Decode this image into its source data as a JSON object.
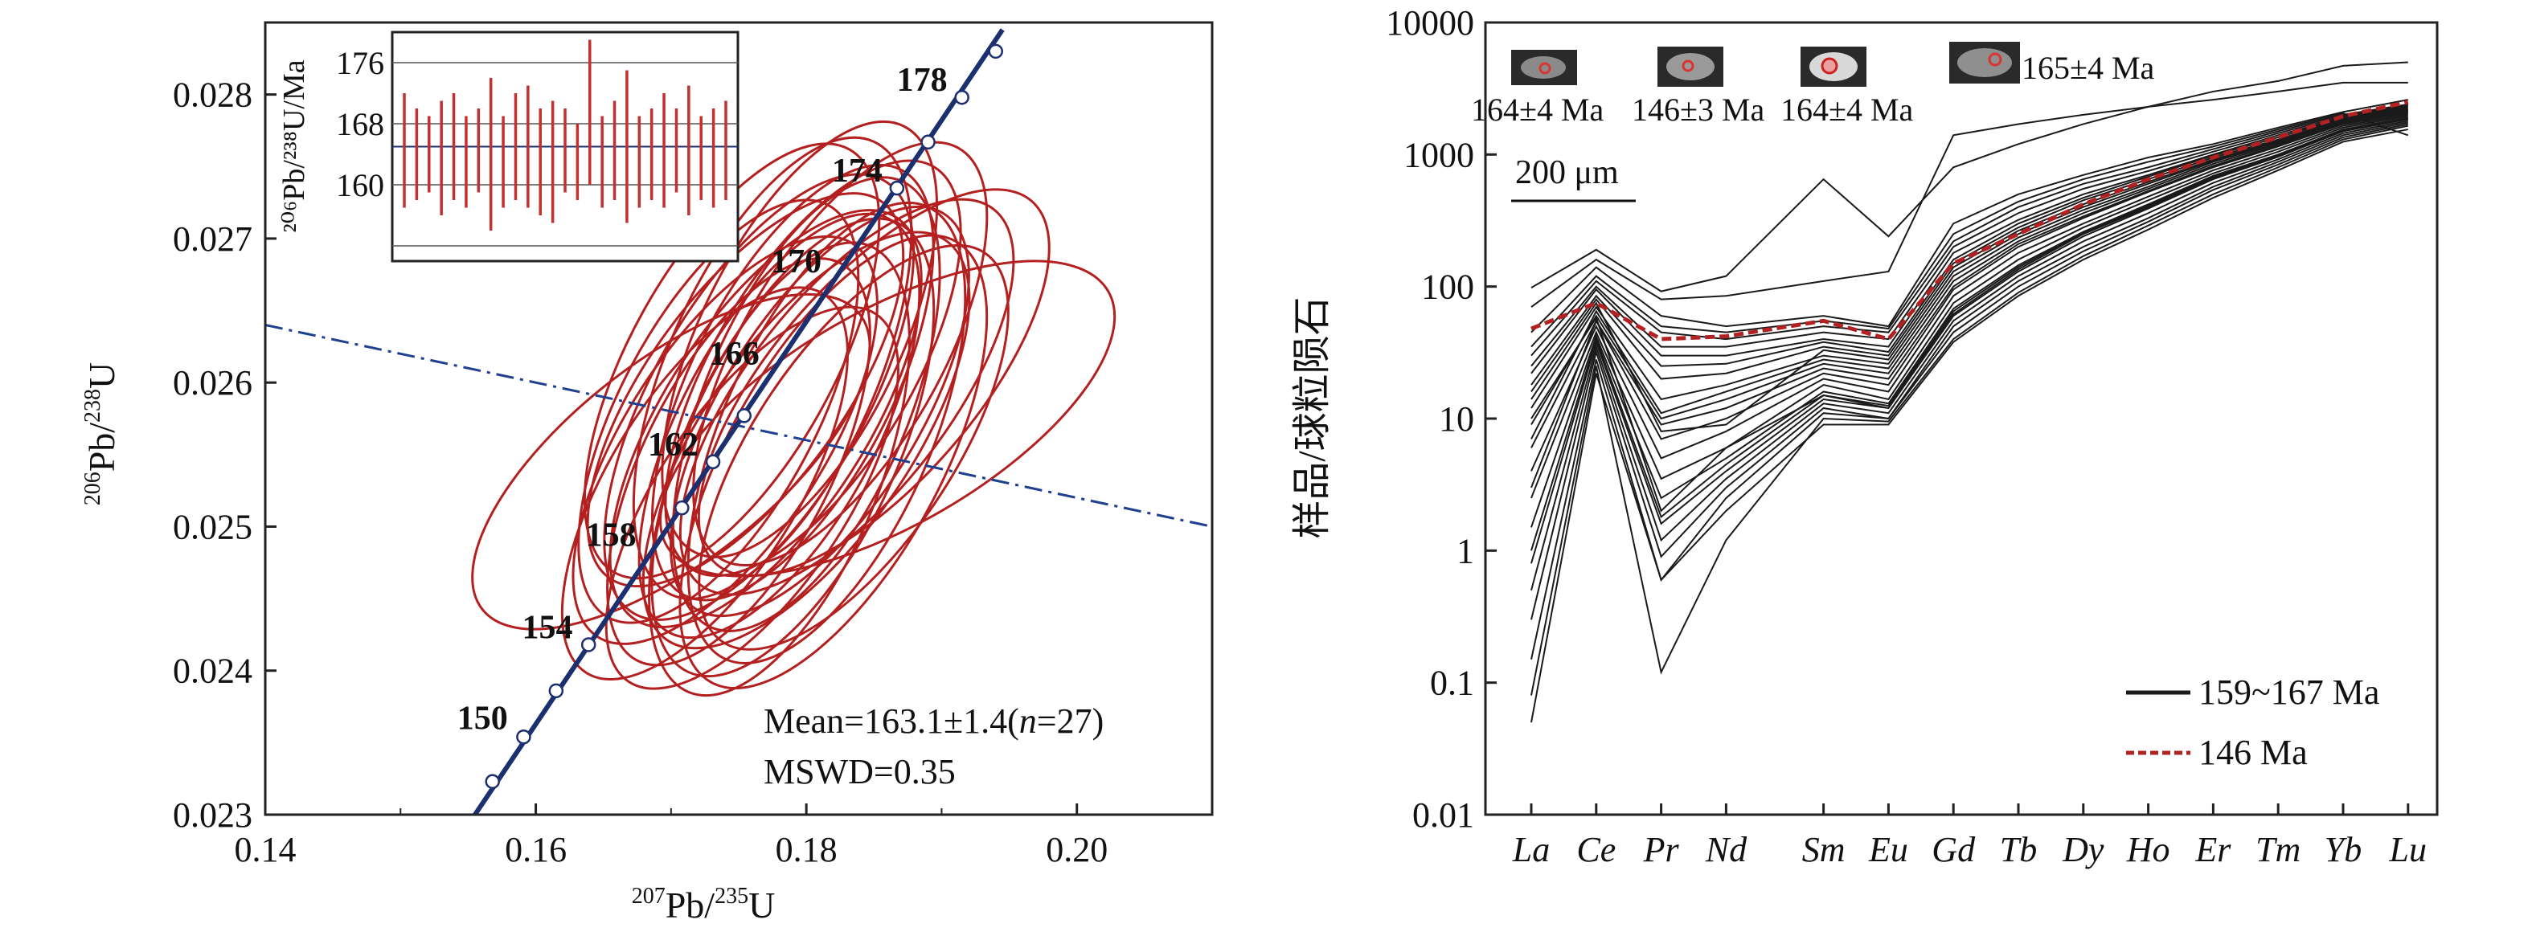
{
  "chart_data": [
    {
      "type": "scatter",
      "subtype": "concordia",
      "xlabel_mass": "207",
      "xlabel_rest": "Pb/",
      "xlabel_mass2": "235",
      "xlabel_tail": "U",
      "ylabel_mass": "206",
      "ylabel_rest": "Pb/",
      "ylabel_mass2": "238",
      "ylabel_tail": "U",
      "xlim": [
        0.14,
        0.21
      ],
      "ylim": [
        0.023,
        0.0285
      ],
      "xticks": [
        {
          "v": 0.14,
          "label": "0.14"
        },
        {
          "v": 0.16,
          "label": "0.16"
        },
        {
          "v": 0.18,
          "label": "0.18"
        },
        {
          "v": 0.2,
          "label": "0.20"
        }
      ],
      "yticks": [
        {
          "v": 0.023,
          "label": "0.023"
        },
        {
          "v": 0.024,
          "label": "0.024"
        },
        {
          "v": 0.025,
          "label": "0.025"
        },
        {
          "v": 0.026,
          "label": "0.026"
        },
        {
          "v": 0.027,
          "label": "0.027"
        },
        {
          "v": 0.028,
          "label": "0.028"
        }
      ],
      "concordia": {
        "points": [
          {
            "x": 0.1555,
            "y": 0.023
          },
          {
            "x": 0.1945,
            "y": 0.02845
          }
        ],
        "age_labels": [
          {
            "age": "150",
            "x": 0.159,
            "y": 0.02355
          },
          {
            "age": "154",
            "x": 0.1638,
            "y": 0.02418
          },
          {
            "age": "158",
            "x": 0.1685,
            "y": 0.02482
          },
          {
            "age": "162",
            "x": 0.1731,
            "y": 0.02545
          },
          {
            "age": "166",
            "x": 0.1776,
            "y": 0.02608
          },
          {
            "age": "170",
            "x": 0.1822,
            "y": 0.02672
          },
          {
            "age": "174",
            "x": 0.1867,
            "y": 0.02735
          },
          {
            "age": "178",
            "x": 0.1915,
            "y": 0.02798
          }
        ],
        "markers": [
          {
            "x": 0.1568,
            "y": 0.02323
          },
          {
            "x": 0.1591,
            "y": 0.02354
          },
          {
            "x": 0.1615,
            "y": 0.02386
          },
          {
            "x": 0.1639,
            "y": 0.02418
          },
          {
            "x": 0.1708,
            "y": 0.02513
          },
          {
            "x": 0.1731,
            "y": 0.02545
          },
          {
            "x": 0.1754,
            "y": 0.02577
          },
          {
            "x": 0.1867,
            "y": 0.02735
          },
          {
            "x": 0.189,
            "y": 0.02767
          },
          {
            "x": 0.1915,
            "y": 0.02798
          },
          {
            "x": 0.194,
            "y": 0.0283
          }
        ]
      },
      "reference_line": [
        {
          "x": 0.14,
          "y": 0.0264
        },
        {
          "x": 0.21,
          "y": 0.025
        }
      ],
      "ellipses": [
        {
          "cx": 0.178,
          "cy": 0.0257,
          "rx": 0.0112,
          "ry": 0.00135,
          "angle": 62
        },
        {
          "cx": 0.18,
          "cy": 0.0256,
          "rx": 0.0135,
          "ry": 0.00125,
          "angle": 55
        },
        {
          "cx": 0.1765,
          "cy": 0.0259,
          "rx": 0.0125,
          "ry": 0.0014,
          "angle": 60
        },
        {
          "cx": 0.179,
          "cy": 0.02555,
          "rx": 0.0108,
          "ry": 0.0015,
          "angle": 65
        },
        {
          "cx": 0.181,
          "cy": 0.0258,
          "rx": 0.012,
          "ry": 0.00128,
          "angle": 58
        },
        {
          "cx": 0.175,
          "cy": 0.02545,
          "rx": 0.0102,
          "ry": 0.00132,
          "angle": 63
        },
        {
          "cx": 0.183,
          "cy": 0.0259,
          "rx": 0.0142,
          "ry": 0.00112,
          "angle": 52
        },
        {
          "cx": 0.1775,
          "cy": 0.0261,
          "rx": 0.0116,
          "ry": 0.00145,
          "angle": 66
        },
        {
          "cx": 0.174,
          "cy": 0.0256,
          "rx": 0.0128,
          "ry": 0.00122,
          "angle": 57
        },
        {
          "cx": 0.182,
          "cy": 0.02545,
          "rx": 0.013,
          "ry": 0.00138,
          "angle": 61
        },
        {
          "cx": 0.1795,
          "cy": 0.0263,
          "rx": 0.0106,
          "ry": 0.00142,
          "angle": 64
        },
        {
          "cx": 0.176,
          "cy": 0.0252,
          "rx": 0.0118,
          "ry": 0.00118,
          "angle": 56
        },
        {
          "cx": 0.185,
          "cy": 0.026,
          "rx": 0.015,
          "ry": 0.00105,
          "angle": 49
        },
        {
          "cx": 0.178,
          "cy": 0.0254,
          "rx": 0.0098,
          "ry": 0.0015,
          "angle": 68
        },
        {
          "cx": 0.1805,
          "cy": 0.0261,
          "rx": 0.0124,
          "ry": 0.00126,
          "angle": 59
        },
        {
          "cx": 0.1735,
          "cy": 0.0258,
          "rx": 0.011,
          "ry": 0.00136,
          "angle": 62
        },
        {
          "cx": 0.1825,
          "cy": 0.0262,
          "rx": 0.0121,
          "ry": 0.00131,
          "angle": 60
        },
        {
          "cx": 0.1755,
          "cy": 0.02595,
          "rx": 0.0132,
          "ry": 0.00116,
          "angle": 54
        },
        {
          "cx": 0.1815,
          "cy": 0.02565,
          "rx": 0.0114,
          "ry": 0.00146,
          "angle": 66
        },
        {
          "cx": 0.177,
          "cy": 0.02575,
          "rx": 0.0136,
          "ry": 0.0012,
          "angle": 57
        },
        {
          "cx": 0.186,
          "cy": 0.02575,
          "rx": 0.016,
          "ry": 0.0011,
          "angle": 30
        },
        {
          "cx": 0.1725,
          "cy": 0.0253,
          "rx": 0.0108,
          "ry": 0.00128,
          "angle": 58
        },
        {
          "cx": 0.179,
          "cy": 0.026,
          "rx": 0.0119,
          "ry": 0.00134,
          "angle": 63
        },
        {
          "cx": 0.1745,
          "cy": 0.02615,
          "rx": 0.0115,
          "ry": 0.0014,
          "angle": 61
        },
        {
          "cx": 0.1835,
          "cy": 0.02555,
          "rx": 0.0126,
          "ry": 0.00124,
          "angle": 56
        },
        {
          "cx": 0.18,
          "cy": 0.02585,
          "rx": 0.0104,
          "ry": 0.00148,
          "angle": 67
        },
        {
          "cx": 0.17,
          "cy": 0.02545,
          "rx": 0.0145,
          "ry": 0.0011,
          "angle": 38
        }
      ],
      "annotation_mean": "Mean=163.1±1.4(",
      "annotation_n": "n",
      "annotation_n_tail": "=27)",
      "annotation_mswd": "MSWD=0.35",
      "inset": {
        "ylabel": "²⁰⁶Pb/²³⁸U/Ma",
        "ylim": [
          150,
          180
        ],
        "yticks": [
          {
            "v": 160,
            "label": "160"
          },
          {
            "v": 168,
            "label": "168"
          },
          {
            "v": 176,
            "label": "176"
          }
        ],
        "bars": [
          [
            157,
            172
          ],
          [
            158,
            170
          ],
          [
            159,
            169
          ],
          [
            156,
            171
          ],
          [
            158,
            172
          ],
          [
            157,
            169
          ],
          [
            159,
            170
          ],
          [
            154,
            174
          ],
          [
            157,
            169
          ],
          [
            158,
            172
          ],
          [
            157,
            173
          ],
          [
            156,
            170
          ],
          [
            155,
            171
          ],
          [
            159,
            170
          ],
          [
            158,
            168
          ],
          [
            160,
            179
          ],
          [
            157,
            169
          ],
          [
            158,
            171
          ],
          [
            155,
            175
          ],
          [
            157,
            169
          ],
          [
            158,
            170
          ],
          [
            157,
            172
          ],
          [
            159,
            170
          ],
          [
            156,
            173
          ],
          [
            158,
            169
          ],
          [
            157,
            170
          ],
          [
            158,
            171
          ]
        ]
      }
    },
    {
      "type": "line",
      "subtype": "chondrite-normalized REE pattern",
      "yscale": "log",
      "ylabel": "样品/球粒陨石",
      "ylim": [
        0.01,
        10000
      ],
      "yticks": [
        {
          "v": 0.01,
          "label": "0.01"
        },
        {
          "v": 0.1,
          "label": "0.1"
        },
        {
          "v": 1,
          "label": "1"
        },
        {
          "v": 10,
          "label": "10"
        },
        {
          "v": 100,
          "label": "100"
        },
        {
          "v": 1000,
          "label": "1000"
        },
        {
          "v": 10000,
          "label": "10000"
        }
      ],
      "categories": [
        "La",
        "Ce",
        "Pr",
        "Nd",
        "Sm",
        "Eu",
        "Gd",
        "Tb",
        "Dy",
        "Ho",
        "Er",
        "Tm",
        "Yb",
        "Lu"
      ],
      "category_positions": [
        0,
        1,
        2,
        3,
        4.5,
        5.5,
        6.5,
        7.5,
        8.5,
        9.5,
        10.5,
        11.5,
        12.5,
        13.5
      ],
      "series": [
        {
          "name": "159~167 Ma",
          "color": "#1a1a1a",
          "style": "solid"
        },
        {
          "name": "146 Ma",
          "color": "#b22222",
          "style": "dashed"
        }
      ],
      "group_lines": [
        [
          98,
          190,
          92,
          120,
          650,
          240,
          800,
          1200,
          1700,
          2300,
          3000,
          3600,
          4700,
          5000
        ],
        [
          70,
          160,
          80,
          85,
          110,
          130,
          1400,
          1700,
          2000,
          2300,
          2600,
          3000,
          3500,
          3500
        ],
        [
          45,
          140,
          60,
          50,
          60,
          50,
          300,
          500,
          700,
          950,
          1200,
          1600,
          2100,
          2600
        ],
        [
          30,
          110,
          45,
          40,
          50,
          45,
          220,
          400,
          600,
          800,
          1100,
          1500,
          2000,
          2400
        ],
        [
          22,
          95,
          30,
          30,
          40,
          35,
          180,
          320,
          500,
          700,
          1000,
          1400,
          1900,
          2300
        ],
        [
          16,
          80,
          20,
          22,
          35,
          30,
          150,
          280,
          450,
          650,
          950,
          1300,
          1850,
          2200
        ],
        [
          12,
          70,
          14,
          18,
          30,
          26,
          130,
          250,
          400,
          600,
          900,
          1250,
          1800,
          2150
        ],
        [
          9,
          60,
          10,
          14,
          26,
          22,
          110,
          220,
          360,
          550,
          850,
          1200,
          1750,
          2100
        ],
        [
          6,
          55,
          7,
          10,
          22,
          18,
          95,
          200,
          330,
          520,
          800,
          1150,
          1700,
          2050
        ],
        [
          4,
          50,
          5,
          8,
          20,
          16,
          85,
          180,
          300,
          480,
          760,
          1100,
          1650,
          2000
        ],
        [
          2.5,
          45,
          3.5,
          6,
          18,
          14,
          75,
          160,
          280,
          450,
          720,
          1050,
          1600,
          1950
        ],
        [
          1.5,
          42,
          2.5,
          5,
          16,
          13,
          68,
          145,
          260,
          420,
          690,
          1000,
          1550,
          1900
        ],
        [
          0.8,
          38,
          1.6,
          4,
          14,
          12,
          60,
          130,
          240,
          390,
          650,
          960,
          1500,
          1850
        ],
        [
          0.5,
          35,
          1.2,
          3.5,
          13,
          11,
          55,
          120,
          220,
          360,
          610,
          920,
          1450,
          1800
        ],
        [
          0.3,
          32,
          0.9,
          3,
          12,
          10,
          50,
          110,
          200,
          330,
          570,
          880,
          1400,
          1750
        ],
        [
          0.15,
          28,
          0.6,
          2.5,
          11,
          10,
          45,
          100,
          185,
          310,
          540,
          840,
          1350,
          1700
        ],
        [
          0.08,
          25,
          0.12,
          1.2,
          10,
          9.5,
          40,
          90,
          170,
          290,
          500,
          800,
          1300,
          1650
        ],
        [
          0.05,
          22,
          0.6,
          2,
          9,
          9,
          38,
          85,
          160,
          270,
          470,
          760,
          1250,
          1550
        ],
        [
          3,
          55,
          9,
          12,
          24,
          20,
          100,
          210,
          340,
          530,
          820,
          1170,
          1720,
          2080
        ],
        [
          7,
          65,
          11,
          16,
          28,
          24,
          120,
          235,
          380,
          570,
          880,
          1230,
          1780,
          2130
        ],
        [
          14,
          75,
          8,
          9,
          33,
          28,
          140,
          265,
          420,
          620,
          920,
          1270,
          1820,
          2170
        ],
        [
          18,
          85,
          25,
          26,
          38,
          32,
          160,
          300,
          470,
          680,
          980,
          1350,
          1880,
          2250
        ],
        [
          25,
          100,
          35,
          35,
          45,
          40,
          200,
          360,
          550,
          750,
          1050,
          1450,
          1950,
          2350
        ],
        [
          35,
          120,
          50,
          45,
          55,
          48,
          250,
          440,
          650,
          880,
          1150,
          1550,
          2050,
          1400
        ],
        [
          10,
          58,
          2,
          6,
          15,
          12,
          62,
          135,
          250,
          400,
          660,
          980,
          1520,
          1870
        ],
        [
          1,
          40,
          1.8,
          4.5,
          15,
          12.5,
          65,
          140,
          255,
          410,
          675,
          990,
          1530,
          1880
        ]
      ],
      "sample_146": [
        48,
        75,
        40,
        42,
        55,
        40,
        150,
        250,
        420,
        650,
        950,
        1350,
        1950,
        2500
      ],
      "scale_bar_label": "200 μm",
      "crystal_labels": [
        "164±4 Ma",
        "146±3 Ma",
        "164±4 Ma",
        "165±4 Ma"
      ]
    }
  ]
}
